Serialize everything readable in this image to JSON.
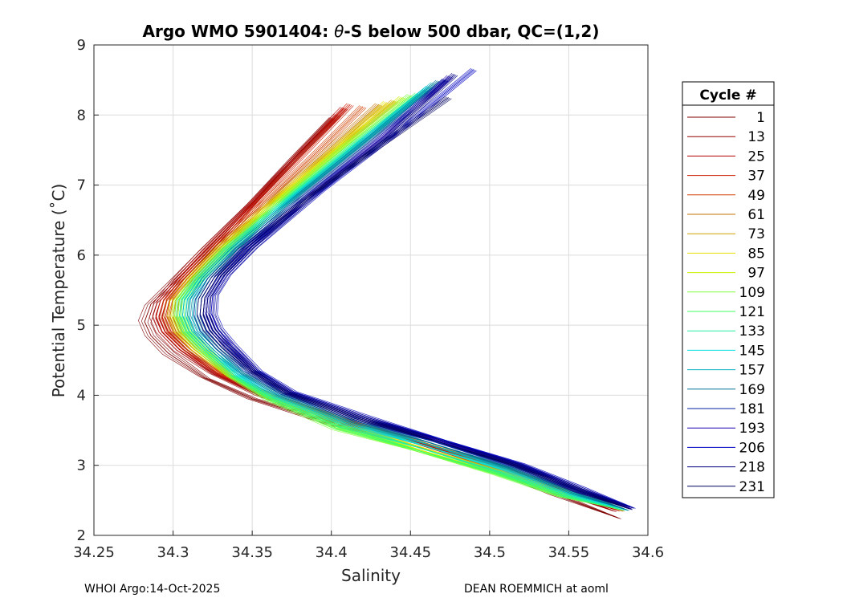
{
  "chart_data": {
    "type": "line",
    "title_prefix": "Argo WMO 5901404: ",
    "title_theta": "θ",
    "title_suffix": "-S below 500 dbar,  QC=(1,2)",
    "xlabel": "Salinity",
    "ylabel": "Potential Temperature (˚C)",
    "xlim": [
      34.25,
      34.6
    ],
    "ylim": [
      2,
      9
    ],
    "xticks": [
      "34.25",
      "34.3",
      "34.35",
      "34.4",
      "34.45",
      "34.5",
      "34.55",
      "34.6"
    ],
    "xtick_values": [
      34.25,
      34.3,
      34.35,
      34.4,
      34.45,
      34.5,
      34.55,
      34.6
    ],
    "yticks": [
      "2",
      "3",
      "4",
      "5",
      "6",
      "7",
      "8",
      "9"
    ],
    "ytick_values": [
      2,
      3,
      4,
      5,
      6,
      7,
      8,
      9
    ],
    "grid": true,
    "legend": {
      "title": "Cycle #",
      "placement": "right-outside",
      "entries": [
        {
          "label": "1",
          "color": "#800000"
        },
        {
          "label": "13",
          "color": "#990000"
        },
        {
          "label": "25",
          "color": "#b30000"
        },
        {
          "label": "37",
          "color": "#cc1a00"
        },
        {
          "label": "49",
          "color": "#d04000"
        },
        {
          "label": "61",
          "color": "#c07000"
        },
        {
          "label": "73",
          "color": "#d0a000"
        },
        {
          "label": "85",
          "color": "#e6e000"
        },
        {
          "label": "97",
          "color": "#c8f000"
        },
        {
          "label": "109",
          "color": "#80ff40"
        },
        {
          "label": "121",
          "color": "#40ff60"
        },
        {
          "label": "133",
          "color": "#20f0a0"
        },
        {
          "label": "145",
          "color": "#00e0e0"
        },
        {
          "label": "157",
          "color": "#00b0c0"
        },
        {
          "label": "169",
          "color": "#007090"
        },
        {
          "label": "181",
          "color": "#0020a0"
        },
        {
          "label": "193",
          "color": "#2000b0"
        },
        {
          "label": "206",
          "color": "#0000c0"
        },
        {
          "label": "218",
          "color": "#000080"
        },
        {
          "label": "231",
          "color": "#000060"
        }
      ]
    },
    "series": [
      {
        "name": "1",
        "color": "#800000",
        "x": [
          34.401,
          34.375,
          34.348,
          34.318,
          34.3,
          34.286,
          34.282,
          34.286,
          34.297,
          34.32,
          34.35,
          34.4,
          34.45,
          34.5,
          34.54,
          34.581
        ],
        "y": [
          7.95,
          7.35,
          6.7,
          6.0,
          5.6,
          5.3,
          5.05,
          4.85,
          4.6,
          4.25,
          3.95,
          3.6,
          3.3,
          2.95,
          2.6,
          2.25
        ]
      },
      {
        "name": "13",
        "color": "#990000",
        "x": [
          34.404,
          34.378,
          34.35,
          34.32,
          34.303,
          34.292,
          34.289,
          34.293,
          34.304,
          34.326,
          34.355,
          34.405,
          34.455,
          34.505,
          34.545,
          34.578
        ],
        "y": [
          8.0,
          7.4,
          6.75,
          6.05,
          5.65,
          5.35,
          5.1,
          4.9,
          4.65,
          4.3,
          4.0,
          3.62,
          3.3,
          2.95,
          2.62,
          2.35
        ]
      },
      {
        "name": "25",
        "color": "#b30000",
        "x": [
          34.408,
          34.38,
          34.352,
          34.322,
          34.305,
          34.294,
          34.291,
          34.295,
          34.306,
          34.328,
          34.357,
          34.407,
          34.457,
          34.507,
          34.547,
          34.58
        ],
        "y": [
          8.1,
          7.45,
          6.78,
          6.06,
          5.66,
          5.36,
          5.12,
          4.9,
          4.66,
          4.3,
          4.0,
          3.63,
          3.31,
          2.96,
          2.62,
          2.36
        ]
      },
      {
        "name": "37",
        "color": "#cc1a00",
        "x": [
          34.412,
          34.384,
          34.355,
          34.324,
          34.307,
          34.296,
          34.293,
          34.297,
          34.308,
          34.33,
          34.359,
          34.409,
          34.459,
          34.509,
          34.549,
          34.582
        ],
        "y": [
          8.15,
          7.48,
          6.8,
          6.07,
          5.67,
          5.37,
          5.13,
          4.91,
          4.67,
          4.31,
          4.01,
          3.63,
          3.31,
          2.96,
          2.62,
          2.36
        ]
      },
      {
        "name": "49",
        "color": "#d04000",
        "x": [
          34.42,
          34.39,
          34.358,
          34.326,
          34.309,
          34.298,
          34.296,
          34.3,
          34.311,
          34.332,
          34.361,
          34.41,
          34.46,
          34.51,
          34.55,
          34.582
        ],
        "y": [
          8.12,
          7.45,
          6.77,
          6.06,
          5.66,
          5.36,
          5.12,
          4.9,
          4.66,
          4.3,
          4.0,
          3.62,
          3.3,
          2.95,
          2.61,
          2.36
        ]
      },
      {
        "name": "61",
        "color": "#c07000",
        "x": [
          34.43,
          34.396,
          34.362,
          34.328,
          34.311,
          34.3,
          34.298,
          34.302,
          34.313,
          34.334,
          34.362,
          34.412,
          34.462,
          34.512,
          34.551,
          34.583
        ],
        "y": [
          8.15,
          7.47,
          6.78,
          6.06,
          5.66,
          5.36,
          5.12,
          4.9,
          4.66,
          4.3,
          4.0,
          3.62,
          3.3,
          2.95,
          2.61,
          2.36
        ]
      },
      {
        "name": "73",
        "color": "#d0a000",
        "x": [
          34.44,
          34.402,
          34.366,
          34.33,
          34.313,
          34.302,
          34.3,
          34.304,
          34.315,
          34.335,
          34.362,
          34.41,
          34.46,
          34.51,
          34.55,
          34.583
        ],
        "y": [
          8.2,
          7.5,
          6.8,
          6.07,
          5.67,
          5.37,
          5.13,
          4.91,
          4.66,
          4.3,
          3.99,
          3.6,
          3.27,
          2.92,
          2.6,
          2.36
        ]
      },
      {
        "name": "85",
        "color": "#e6e000",
        "x": [
          34.435,
          34.4,
          34.364,
          34.329,
          34.312,
          34.302,
          34.301,
          34.305,
          34.316,
          34.336,
          34.362,
          34.408,
          34.458,
          34.508,
          34.548,
          34.582
        ],
        "y": [
          8.18,
          7.48,
          6.79,
          6.06,
          5.66,
          5.36,
          5.12,
          4.9,
          4.65,
          4.28,
          3.97,
          3.58,
          3.25,
          2.9,
          2.59,
          2.37
        ]
      },
      {
        "name": "97",
        "color": "#c8f000",
        "x": [
          34.445,
          34.405,
          34.367,
          34.331,
          34.314,
          34.304,
          34.303,
          34.307,
          34.318,
          34.337,
          34.362,
          34.406,
          34.456,
          34.506,
          34.546,
          34.58
        ],
        "y": [
          8.25,
          7.52,
          6.8,
          6.06,
          5.66,
          5.36,
          5.12,
          4.9,
          4.65,
          4.27,
          3.95,
          3.55,
          3.22,
          2.88,
          2.58,
          2.38
        ]
      },
      {
        "name": "109",
        "color": "#80ff40",
        "x": [
          34.45,
          34.408,
          34.369,
          34.332,
          34.315,
          34.305,
          34.304,
          34.308,
          34.319,
          34.337,
          34.361,
          34.404,
          34.454,
          34.504,
          34.545,
          34.58
        ],
        "y": [
          8.28,
          7.54,
          6.81,
          6.06,
          5.66,
          5.36,
          5.12,
          4.9,
          4.65,
          4.26,
          3.93,
          3.52,
          3.2,
          2.87,
          2.57,
          2.38
        ]
      },
      {
        "name": "121",
        "color": "#40ff60",
        "x": [
          34.455,
          34.412,
          34.372,
          34.334,
          34.316,
          34.306,
          34.305,
          34.309,
          34.32,
          34.338,
          34.362,
          34.405,
          34.455,
          34.505,
          34.546,
          34.581
        ],
        "y": [
          8.3,
          7.55,
          6.82,
          6.07,
          5.67,
          5.37,
          5.13,
          4.91,
          4.65,
          4.27,
          3.94,
          3.54,
          3.21,
          2.88,
          2.57,
          2.38
        ]
      },
      {
        "name": "133",
        "color": "#20f0a0",
        "x": [
          34.46,
          34.415,
          34.374,
          34.335,
          34.317,
          34.307,
          34.306,
          34.31,
          34.321,
          34.339,
          34.363,
          34.407,
          34.457,
          34.507,
          34.548,
          34.583
        ],
        "y": [
          8.35,
          7.58,
          6.83,
          6.07,
          5.67,
          5.37,
          5.13,
          4.91,
          4.66,
          4.28,
          3.96,
          3.57,
          3.24,
          2.9,
          2.58,
          2.37
        ]
      },
      {
        "name": "145",
        "color": "#00e0e0",
        "x": [
          34.462,
          34.418,
          34.376,
          34.336,
          34.318,
          34.309,
          34.308,
          34.312,
          34.323,
          34.341,
          34.365,
          34.41,
          34.46,
          34.51,
          34.55,
          34.585
        ],
        "y": [
          8.4,
          7.6,
          6.84,
          6.07,
          5.67,
          5.37,
          5.13,
          4.91,
          4.66,
          4.29,
          3.98,
          3.6,
          3.27,
          2.93,
          2.6,
          2.37
        ]
      },
      {
        "name": "157",
        "color": "#00b0c0",
        "x": [
          34.465,
          34.42,
          34.378,
          34.338,
          34.32,
          34.311,
          34.31,
          34.314,
          34.325,
          34.343,
          34.367,
          34.412,
          34.462,
          34.512,
          34.552,
          34.586
        ],
        "y": [
          8.45,
          7.62,
          6.85,
          6.07,
          5.67,
          5.37,
          5.13,
          4.91,
          4.66,
          4.3,
          3.99,
          3.62,
          3.29,
          2.95,
          2.61,
          2.37
        ]
      },
      {
        "name": "169",
        "color": "#007090",
        "x": [
          34.468,
          34.423,
          34.38,
          34.34,
          34.322,
          34.314,
          34.313,
          34.317,
          34.327,
          34.345,
          34.369,
          34.414,
          34.464,
          34.514,
          34.553,
          34.586
        ],
        "y": [
          8.48,
          7.64,
          6.86,
          6.08,
          5.67,
          5.37,
          5.13,
          4.91,
          4.66,
          4.31,
          4.0,
          3.64,
          3.31,
          2.96,
          2.62,
          2.37
        ]
      },
      {
        "name": "181",
        "color": "#0020a0",
        "x": [
          34.472,
          34.428,
          34.384,
          34.343,
          34.326,
          34.318,
          34.317,
          34.321,
          34.331,
          34.348,
          34.371,
          34.416,
          34.466,
          34.516,
          34.555,
          34.588
        ],
        "y": [
          8.5,
          7.65,
          6.86,
          6.08,
          5.68,
          5.38,
          5.14,
          4.92,
          4.68,
          4.33,
          4.02,
          3.66,
          3.33,
          2.98,
          2.64,
          2.39
        ]
      },
      {
        "name": "193",
        "color": "#2000b0",
        "x": [
          34.475,
          34.432,
          34.388,
          34.347,
          34.33,
          34.322,
          34.321,
          34.325,
          34.335,
          34.351,
          34.373,
          34.418,
          34.468,
          34.518,
          34.556,
          34.588
        ],
        "y": [
          8.55,
          7.68,
          6.88,
          6.1,
          5.7,
          5.4,
          5.15,
          4.93,
          4.69,
          4.35,
          4.04,
          3.68,
          3.35,
          3.0,
          2.65,
          2.39
        ]
      },
      {
        "name": "206",
        "color": "#0000c0",
        "x": [
          34.49,
          34.44,
          34.393,
          34.35,
          34.333,
          34.325,
          34.324,
          34.328,
          34.337,
          34.353,
          34.375,
          34.42,
          34.47,
          34.52,
          34.558,
          34.59
        ],
        "y": [
          8.65,
          7.72,
          6.9,
          6.12,
          5.72,
          5.42,
          5.17,
          4.95,
          4.7,
          4.36,
          4.05,
          3.7,
          3.37,
          3.02,
          2.67,
          2.4
        ]
      },
      {
        "name": "218",
        "color": "#000080",
        "x": [
          34.478,
          34.436,
          34.391,
          34.349,
          34.332,
          34.324,
          34.323,
          34.327,
          34.336,
          34.352,
          34.374,
          34.419,
          34.469,
          34.519,
          34.557,
          34.589
        ],
        "y": [
          8.58,
          7.7,
          6.89,
          6.11,
          5.71,
          5.41,
          5.16,
          4.94,
          4.69,
          4.35,
          4.04,
          3.69,
          3.36,
          3.01,
          2.66,
          2.4
        ]
      },
      {
        "name": "231",
        "color": "#000060",
        "x": [
          34.474,
          34.43,
          34.386,
          34.345,
          34.328,
          34.32,
          34.319,
          34.323,
          34.333,
          34.35,
          34.372,
          34.417,
          34.467,
          34.517,
          34.556,
          34.588
        ],
        "y": [
          8.25,
          7.55,
          6.84,
          6.08,
          5.69,
          5.39,
          5.15,
          4.93,
          4.68,
          4.34,
          4.03,
          3.67,
          3.34,
          2.99,
          2.64,
          2.38
        ]
      }
    ]
  },
  "footer": {
    "left": "WHOI Argo:14-Oct-2025",
    "right": "DEAN ROEMMICH at aoml"
  }
}
